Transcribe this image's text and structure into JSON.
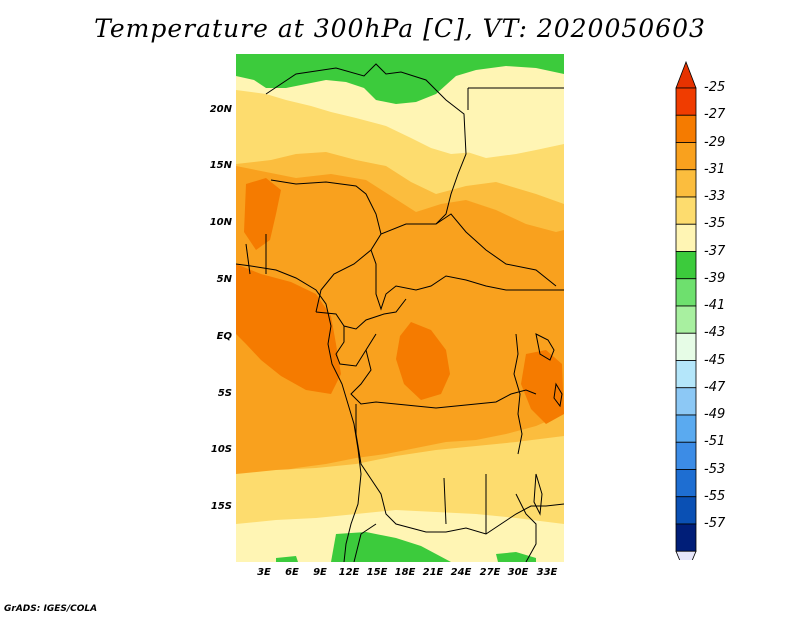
{
  "title": "Temperature at 300hPa [C], VT: 2020050603",
  "credit": "GrADS: IGES/COLA",
  "lat_ticks": [
    "20N",
    "15N",
    "10N",
    "5N",
    "EQ",
    "5S",
    "10S",
    "15S"
  ],
  "lon_ticks": [
    "3E",
    "6E",
    "9E",
    "12E",
    "15E",
    "18E",
    "21E",
    "24E",
    "27E",
    "30E",
    "33E"
  ],
  "colorbar": {
    "labels": [
      "-25",
      "-27",
      "-29",
      "-31",
      "-33",
      "-35",
      "-37",
      "-39",
      "-41",
      "-43",
      "-45",
      "-47",
      "-49",
      "-51",
      "-53",
      "-55",
      "-57"
    ],
    "colors": [
      "#f03c00",
      "#f57b00",
      "#f9a11e",
      "#fbbd3e",
      "#fddc6e",
      "#fff5b4",
      "#3ccb3c",
      "#6ee06e",
      "#a8f0a0",
      "#e6fce6",
      "#b4e6fa",
      "#8cc8f5",
      "#5aaaf0",
      "#3c8ce6",
      "#1e6ed2",
      "#0a50b4",
      "#001e78"
    ],
    "top_arrow_color": "#e63200",
    "bottom_arrow_color": "#e6e6fa"
  },
  "map": {
    "background_color": "#fbbd3e",
    "region_colors": {
      "green": "#3ccb3c",
      "pale_yellow": "#fff5b4",
      "light_yellow": "#fddc6e",
      "orange": "#f9a11e",
      "dark_orange": "#f57b00"
    }
  }
}
